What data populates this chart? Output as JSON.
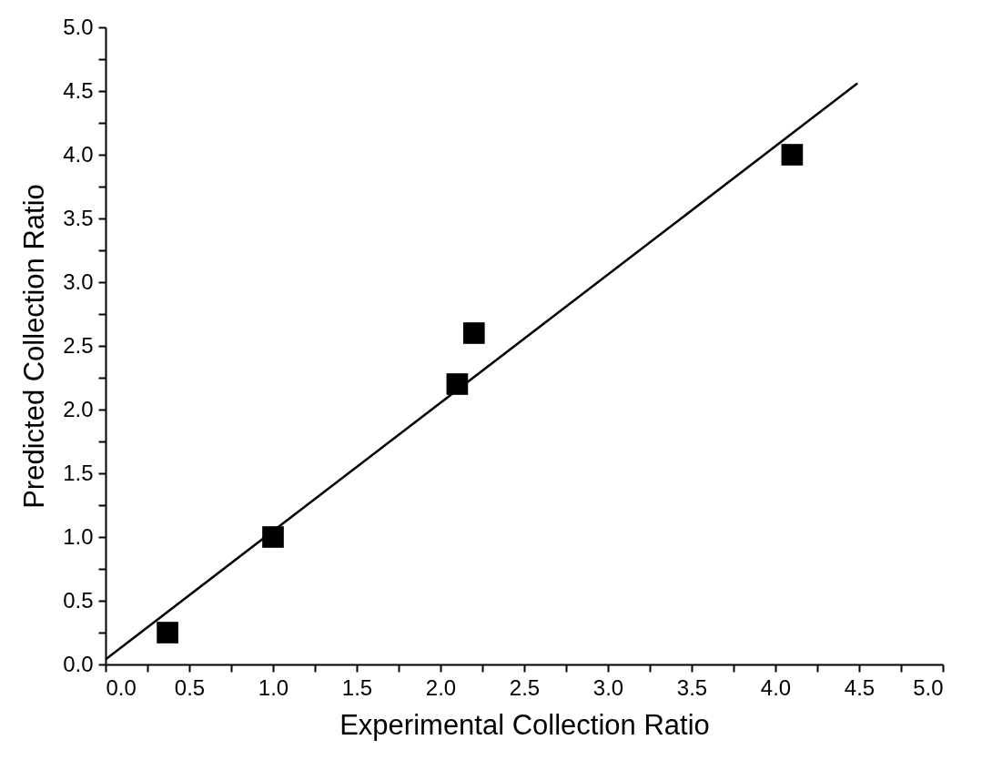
{
  "chart_data": {
    "type": "scatter",
    "xlabel": "Experimental Collection Ratio",
    "ylabel": "Predicted Collection Ratio",
    "xlim": [
      0,
      5
    ],
    "ylim": [
      0,
      5
    ],
    "xticks": [
      {
        "value": 0,
        "label": "0.0"
      },
      {
        "value": 0.25,
        "label": null
      },
      {
        "value": 0.5,
        "label": "0.5"
      },
      {
        "value": 0.75,
        "label": null
      },
      {
        "value": 1,
        "label": "1.0"
      },
      {
        "value": 1.25,
        "label": null
      },
      {
        "value": 1.5,
        "label": "1.5"
      },
      {
        "value": 1.75,
        "label": null
      },
      {
        "value": 2,
        "label": "2.0"
      },
      {
        "value": 2.25,
        "label": null
      },
      {
        "value": 2.5,
        "label": "2.5"
      },
      {
        "value": 2.75,
        "label": null
      },
      {
        "value": 3,
        "label": "3.0"
      },
      {
        "value": 3.25,
        "label": null
      },
      {
        "value": 3.5,
        "label": "3.5"
      },
      {
        "value": 3.75,
        "label": null
      },
      {
        "value": 4,
        "label": "4.0"
      },
      {
        "value": 4.25,
        "label": null
      },
      {
        "value": 4.5,
        "label": "4.5"
      },
      {
        "value": 4.75,
        "label": null
      },
      {
        "value": 5,
        "label": "5.0"
      }
    ],
    "yticks": [
      {
        "value": 0,
        "label": "0.0"
      },
      {
        "value": 0.25,
        "label": null
      },
      {
        "value": 0.5,
        "label": "0.5"
      },
      {
        "value": 0.75,
        "label": null
      },
      {
        "value": 1,
        "label": "1.0"
      },
      {
        "value": 1.25,
        "label": null
      },
      {
        "value": 1.5,
        "label": "1.5"
      },
      {
        "value": 1.75,
        "label": null
      },
      {
        "value": 2,
        "label": "2.0"
      },
      {
        "value": 2.25,
        "label": null
      },
      {
        "value": 2.5,
        "label": "2.5"
      },
      {
        "value": 2.75,
        "label": null
      },
      {
        "value": 3,
        "label": "3.0"
      },
      {
        "value": 3.25,
        "label": null
      },
      {
        "value": 3.5,
        "label": "3.5"
      },
      {
        "value": 3.75,
        "label": null
      },
      {
        "value": 4,
        "label": "4.0"
      },
      {
        "value": 4.25,
        "label": null
      },
      {
        "value": 4.5,
        "label": "4.5"
      },
      {
        "value": 4.75,
        "label": null
      },
      {
        "value": 5,
        "label": "5.0"
      }
    ],
    "grid": false,
    "series": [
      {
        "color": "#000000",
        "marker": "square",
        "x": [
          0.37,
          1.0,
          2.1,
          2.2,
          4.1
        ],
        "values": [
          0.25,
          1.0,
          2.2,
          2.6,
          4.0
        ]
      },
      {
        "type": "line",
        "color": "#000000",
        "marker": "none",
        "x": [
          0,
          4.49
        ],
        "values": [
          0.04,
          4.56
        ]
      }
    ]
  }
}
